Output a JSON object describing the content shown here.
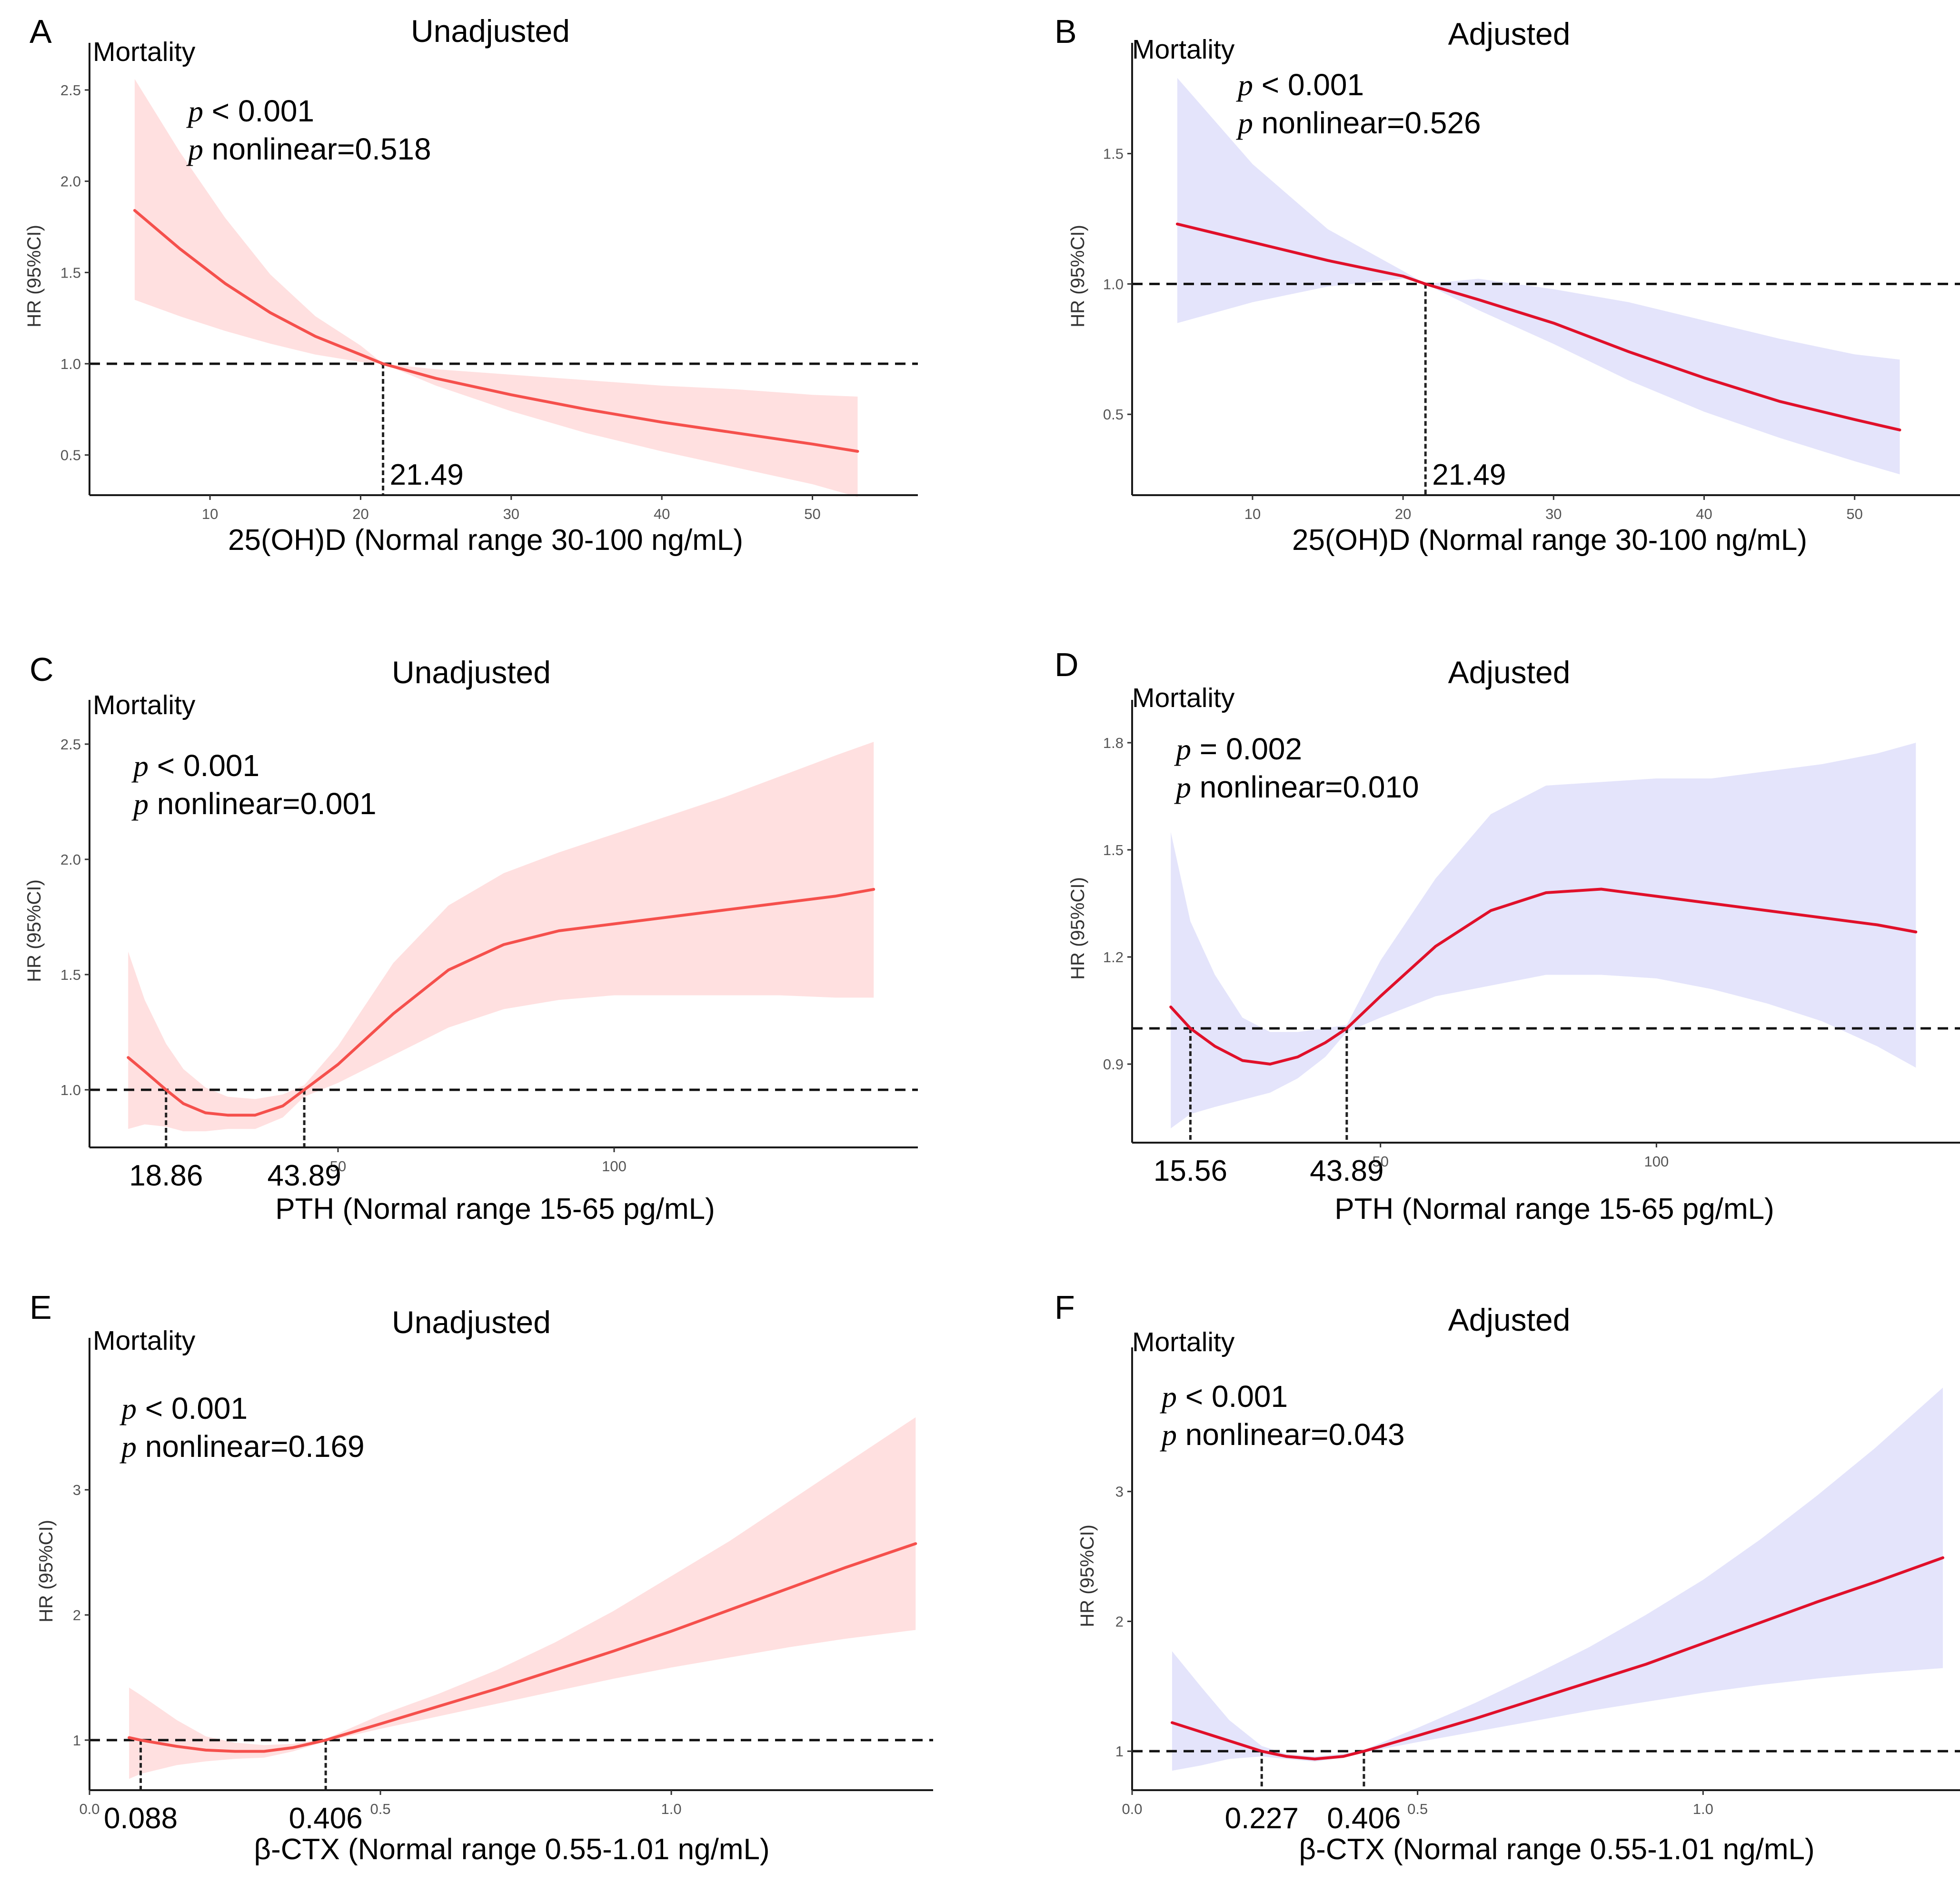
{
  "colors": {
    "unadjusted_band": "#ffe0e0",
    "adjusted_band": "#e4e4fb",
    "unadjusted_curve": "#f5504c",
    "adjusted_curve": "#e0102a",
    "reference_line": "#111111"
  },
  "chart_data": [
    {
      "id": "A",
      "type": "line",
      "letter": "A",
      "title": "Unadjusted",
      "outcome": "Mortality",
      "ylabel": "HR (95%CI)",
      "xlabel": "25(OH)D (Normal range 30-100 ng/mL)",
      "style": "unadjusted",
      "xlim": [
        2,
        57
      ],
      "ylim": [
        0.28,
        2.68
      ],
      "xticks": [
        10,
        20,
        30,
        40,
        50
      ],
      "xtick_labels": [
        "10",
        "20",
        "30",
        "40",
        "50"
      ],
      "yticks": [
        0.5,
        1.0,
        1.5,
        2.0,
        2.5
      ],
      "ytick_labels": [
        "0.5",
        "1.0",
        "1.5",
        "2.0",
        "2.5"
      ],
      "annotations": [
        {
          "p": "p",
          "text": " < 0.001"
        },
        {
          "p": "p",
          "text": " nonlinear=0.518"
        }
      ],
      "reference_hr": 1.0,
      "cut_points": [
        {
          "x": 21.49,
          "label": "21.49"
        }
      ],
      "x": [
        5,
        8,
        11,
        14,
        17,
        20,
        21.49,
        25,
        30,
        35,
        40,
        45,
        50,
        53
      ],
      "hr": [
        1.84,
        1.63,
        1.44,
        1.28,
        1.15,
        1.05,
        1.0,
        0.92,
        0.83,
        0.75,
        0.68,
        0.62,
        0.56,
        0.52
      ],
      "lower": [
        1.35,
        1.26,
        1.18,
        1.11,
        1.05,
        1.01,
        1.0,
        0.88,
        0.74,
        0.62,
        0.52,
        0.43,
        0.34,
        0.27
      ],
      "upper": [
        2.56,
        2.16,
        1.8,
        1.49,
        1.26,
        1.1,
        1.0,
        0.97,
        0.94,
        0.91,
        0.88,
        0.86,
        0.83,
        0.82
      ]
    },
    {
      "id": "B",
      "type": "line",
      "letter": "B",
      "title": "Adjusted",
      "outcome": "Mortality",
      "ylabel": "HR (95%CI)",
      "xlabel": "25(OH)D (Normal range 30-100 ng/mL)",
      "style": "adjusted",
      "xlim": [
        2,
        57
      ],
      "ylim": [
        0.19,
        1.87
      ],
      "xticks": [
        10,
        20,
        30,
        40,
        50
      ],
      "xtick_labels": [
        "10",
        "20",
        "30",
        "40",
        "50"
      ],
      "yticks": [
        0.5,
        1.0,
        1.5
      ],
      "ytick_labels": [
        "0.5",
        "1.0",
        "1.5"
      ],
      "annotations": [
        {
          "p": "p",
          "text": " < 0.001"
        },
        {
          "p": "p",
          "text": " nonlinear=0.526"
        }
      ],
      "reference_hr": 1.0,
      "cut_points": [
        {
          "x": 21.49,
          "label": "21.49"
        }
      ],
      "x": [
        5,
        10,
        15,
        20,
        21.49,
        25,
        30,
        35,
        40,
        45,
        50,
        53
      ],
      "hr": [
        1.23,
        1.16,
        1.09,
        1.03,
        1.0,
        0.94,
        0.85,
        0.74,
        0.64,
        0.55,
        0.48,
        0.44
      ],
      "lower": [
        0.85,
        0.93,
        0.99,
        1.02,
        1.0,
        0.9,
        0.77,
        0.63,
        0.51,
        0.41,
        0.32,
        0.27
      ],
      "upper": [
        1.79,
        1.46,
        1.21,
        1.05,
        1.0,
        1.02,
        0.98,
        0.93,
        0.86,
        0.79,
        0.73,
        0.71
      ]
    },
    {
      "id": "C",
      "type": "line",
      "letter": "C",
      "title": "Unadjusted",
      "outcome": "Mortality",
      "ylabel": "HR (95%CI)",
      "xlabel": "PTH (Normal range 15-65 pg/mL)",
      "style": "unadjusted",
      "xlim": [
        5,
        155
      ],
      "ylim": [
        0.75,
        2.63
      ],
      "xticks": [
        50,
        100
      ],
      "xtick_labels": [
        "50",
        "100"
      ],
      "yticks": [
        1.0,
        1.5,
        2.0,
        2.5
      ],
      "ytick_labels": [
        "1.0",
        "1.5",
        "2.0",
        "2.5"
      ],
      "annotations": [
        {
          "p": "p",
          "text": " < 0.001"
        },
        {
          "p": "p",
          "text": " nonlinear=0.001"
        }
      ],
      "reference_hr": 1.0,
      "cut_points": [
        {
          "x": 18.86,
          "label": "18.86"
        },
        {
          "x": 43.89,
          "label": "43.89"
        }
      ],
      "x": [
        12,
        15,
        18.86,
        22,
        26,
        30,
        35,
        40,
        43.89,
        50,
        60,
        70,
        80,
        90,
        100,
        110,
        120,
        130,
        140,
        147
      ],
      "hr": [
        1.14,
        1.08,
        1.0,
        0.94,
        0.9,
        0.89,
        0.89,
        0.93,
        1.0,
        1.11,
        1.33,
        1.52,
        1.63,
        1.69,
        1.72,
        1.75,
        1.78,
        1.81,
        1.84,
        1.87
      ],
      "lower": [
        0.83,
        0.85,
        0.84,
        0.82,
        0.82,
        0.83,
        0.83,
        0.88,
        0.97,
        1.03,
        1.15,
        1.27,
        1.35,
        1.39,
        1.41,
        1.41,
        1.41,
        1.41,
        1.4,
        1.4
      ],
      "upper": [
        1.6,
        1.39,
        1.2,
        1.09,
        1.01,
        0.97,
        0.96,
        0.98,
        1.02,
        1.19,
        1.55,
        1.8,
        1.94,
        2.03,
        2.11,
        2.19,
        2.27,
        2.36,
        2.45,
        2.51
      ]
    },
    {
      "id": "D",
      "type": "line",
      "letter": "D",
      "title": "Adjusted",
      "outcome": "Mortality",
      "ylabel": "HR (95%CI)",
      "xlabel": "PTH (Normal range 15-65 pg/mL)",
      "style": "adjusted",
      "xlim": [
        5,
        155
      ],
      "ylim": [
        0.68,
        1.88
      ],
      "xticks": [
        50,
        100
      ],
      "xtick_labels": [
        "50",
        "100"
      ],
      "yticks": [
        0.9,
        1.2,
        1.5,
        1.8
      ],
      "ytick_labels": [
        "0.9",
        "1.2",
        "1.5",
        "1.8"
      ],
      "annotations": [
        {
          "p": "p",
          "text": " = 0.002"
        },
        {
          "p": "p",
          "text": " nonlinear=0.010"
        }
      ],
      "reference_hr": 1.0,
      "cut_points": [
        {
          "x": 15.56,
          "label": "15.56"
        },
        {
          "x": 43.89,
          "label": "43.89"
        }
      ],
      "x": [
        12,
        15.56,
        20,
        25,
        30,
        35,
        40,
        43.89,
        50,
        60,
        70,
        80,
        90,
        100,
        110,
        120,
        130,
        140,
        147
      ],
      "hr": [
        1.06,
        1.0,
        0.95,
        0.91,
        0.9,
        0.92,
        0.96,
        1.0,
        1.09,
        1.23,
        1.33,
        1.38,
        1.39,
        1.37,
        1.35,
        1.33,
        1.31,
        1.29,
        1.27
      ],
      "lower": [
        0.72,
        0.76,
        0.78,
        0.8,
        0.82,
        0.86,
        0.92,
        0.99,
        1.03,
        1.09,
        1.12,
        1.15,
        1.15,
        1.14,
        1.11,
        1.07,
        1.02,
        0.95,
        0.89
      ],
      "upper": [
        1.55,
        1.3,
        1.15,
        1.03,
        0.99,
        0.99,
        1.0,
        1.01,
        1.19,
        1.42,
        1.6,
        1.68,
        1.69,
        1.7,
        1.7,
        1.72,
        1.74,
        1.77,
        1.8
      ]
    },
    {
      "id": "E",
      "type": "line",
      "letter": "E",
      "title": "Unadjusted",
      "outcome": "Mortality",
      "ylabel": "HR (95%CI)",
      "xlabel": "β-CTX (Normal range 0.55-1.01 ng/mL)",
      "style": "unadjusted",
      "xlim": [
        0,
        1.45
      ],
      "ylim": [
        0.6,
        4.1
      ],
      "xticks": [
        0.0,
        0.5,
        1.0
      ],
      "xtick_labels": [
        "0.0",
        "0.5",
        "1.0"
      ],
      "yticks": [
        1,
        2,
        3
      ],
      "ytick_labels": [
        "1",
        "2",
        "3"
      ],
      "annotations": [
        {
          "p": "p",
          "text": " < 0.001"
        },
        {
          "p": "p",
          "text": " nonlinear=0.169"
        }
      ],
      "reference_hr": 1.0,
      "cut_points": [
        {
          "x": 0.088,
          "label": "0.088"
        },
        {
          "x": 0.406,
          "label": "0.406"
        }
      ],
      "x": [
        0.068,
        0.088,
        0.15,
        0.2,
        0.25,
        0.3,
        0.35,
        0.406,
        0.5,
        0.6,
        0.7,
        0.8,
        0.9,
        1.0,
        1.1,
        1.2,
        1.3,
        1.42
      ],
      "hr": [
        1.02,
        1.0,
        0.95,
        0.92,
        0.91,
        0.91,
        0.94,
        1.0,
        1.13,
        1.27,
        1.41,
        1.56,
        1.71,
        1.87,
        2.04,
        2.21,
        2.38,
        2.57
      ],
      "lower": [
        0.69,
        0.73,
        0.8,
        0.83,
        0.85,
        0.86,
        0.91,
        0.99,
        1.09,
        1.19,
        1.29,
        1.39,
        1.49,
        1.58,
        1.66,
        1.74,
        1.81,
        1.88
      ],
      "upper": [
        1.42,
        1.36,
        1.16,
        1.03,
        0.98,
        0.96,
        0.97,
        1.01,
        1.2,
        1.37,
        1.56,
        1.78,
        2.03,
        2.31,
        2.59,
        2.9,
        3.21,
        3.58
      ]
    },
    {
      "id": "F",
      "type": "line",
      "letter": "F",
      "title": "Adjusted",
      "outcome": "Mortality",
      "ylabel": "HR (95%CI)",
      "xlabel": "β-CTX (Normal range 0.55-1.01 ng/mL)",
      "style": "adjusted",
      "xlim": [
        0,
        1.45
      ],
      "ylim": [
        0.7,
        4.0
      ],
      "xticks": [
        0.0,
        0.5,
        1.0
      ],
      "xtick_labels": [
        "0.0",
        "0.5",
        "1.0"
      ],
      "yticks": [
        1,
        2,
        3
      ],
      "ytick_labels": [
        "1",
        "2",
        "3"
      ],
      "annotations": [
        {
          "p": "p",
          "text": " < 0.001"
        },
        {
          "p": "p",
          "text": " nonlinear=0.043"
        }
      ],
      "reference_hr": 1.0,
      "cut_points": [
        {
          "x": 0.227,
          "label": "0.227"
        },
        {
          "x": 0.406,
          "label": "0.406"
        }
      ],
      "x": [
        0.07,
        0.12,
        0.17,
        0.227,
        0.27,
        0.32,
        0.37,
        0.406,
        0.5,
        0.6,
        0.7,
        0.8,
        0.9,
        1.0,
        1.1,
        1.2,
        1.3,
        1.42
      ],
      "hr": [
        1.22,
        1.15,
        1.08,
        1.0,
        0.96,
        0.94,
        0.96,
        1.0,
        1.12,
        1.25,
        1.39,
        1.53,
        1.67,
        1.83,
        1.99,
        2.15,
        2.3,
        2.49
      ],
      "lower": [
        0.85,
        0.89,
        0.94,
        0.96,
        0.94,
        0.92,
        0.95,
        0.99,
        1.07,
        1.15,
        1.23,
        1.31,
        1.38,
        1.45,
        1.51,
        1.56,
        1.6,
        1.64
      ],
      "upper": [
        1.77,
        1.5,
        1.24,
        1.04,
        0.98,
        0.96,
        0.98,
        1.01,
        1.18,
        1.37,
        1.58,
        1.8,
        2.05,
        2.32,
        2.63,
        2.97,
        3.33,
        3.8
      ]
    }
  ]
}
